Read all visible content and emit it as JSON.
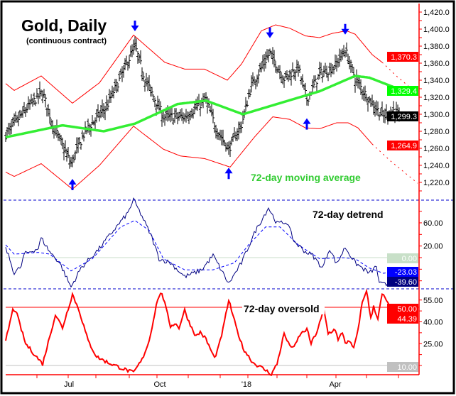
{
  "chart_data": [
    {
      "type": "line",
      "panel": "price",
      "title": "Gold, Daily",
      "subtitle": "(continuous contract)",
      "annotation": "72-day moving average",
      "x_unit": "trading day index",
      "ylim": [
        1200,
        1430
      ],
      "yticks": [
        "1,220.0",
        "1,240.0",
        "1,260.0",
        "1,280.0",
        "1,300.0",
        "1,320.0",
        "1,340.0",
        "1,360.0",
        "1,380.0",
        "1,400.0",
        "1,420.0"
      ],
      "ytick_values": [
        1220,
        1240,
        1260,
        1280,
        1300,
        1320,
        1340,
        1360,
        1380,
        1400,
        1420
      ],
      "close_keypoints": [
        [
          0,
          1276
        ],
        [
          16,
          1309
        ],
        [
          26,
          1326
        ],
        [
          33,
          1288
        ],
        [
          46,
          1242
        ],
        [
          56,
          1280
        ],
        [
          71,
          1309
        ],
        [
          83,
          1351
        ],
        [
          91,
          1380
        ],
        [
          98,
          1342
        ],
        [
          111,
          1297
        ],
        [
          126,
          1297
        ],
        [
          141,
          1317
        ],
        [
          148,
          1284
        ],
        [
          157,
          1259
        ],
        [
          166,
          1288
        ],
        [
          173,
          1334
        ],
        [
          186,
          1372
        ],
        [
          196,
          1342
        ],
        [
          206,
          1355
        ],
        [
          212,
          1317
        ],
        [
          221,
          1347
        ],
        [
          231,
          1355
        ],
        [
          239,
          1376
        ],
        [
          246,
          1342
        ],
        [
          256,
          1317
        ],
        [
          266,
          1297
        ],
        [
          273,
          1305
        ],
        [
          277,
          1299.3
        ]
      ],
      "moving_average": [
        [
          0,
          1273
        ],
        [
          40,
          1287
        ],
        [
          69,
          1280
        ],
        [
          91,
          1289
        ],
        [
          121,
          1312
        ],
        [
          141,
          1316
        ],
        [
          167,
          1300
        ],
        [
          197,
          1315
        ],
        [
          221,
          1327
        ],
        [
          246,
          1345
        ],
        [
          256,
          1343
        ],
        [
          277,
          1329.4
        ]
      ],
      "upper_band": [
        [
          0,
          1336
        ],
        [
          6,
          1328
        ],
        [
          25,
          1345
        ],
        [
          47,
          1313
        ],
        [
          66,
          1337
        ],
        [
          90,
          1393
        ],
        [
          112,
          1361
        ],
        [
          126,
          1353
        ],
        [
          140,
          1353
        ],
        [
          156,
          1340
        ],
        [
          166,
          1359
        ],
        [
          180,
          1398
        ],
        [
          190,
          1405
        ],
        [
          200,
          1401
        ],
        [
          211,
          1392
        ],
        [
          221,
          1390
        ],
        [
          230,
          1395
        ],
        [
          240,
          1398
        ],
        [
          246,
          1394
        ],
        [
          258,
          1370
        ],
        [
          265,
          1361
        ]
      ],
      "upper_band_projection": [
        [
          265,
          1361
        ],
        [
          275,
          1345
        ],
        [
          290,
          1324
        ]
      ],
      "lower_band": [
        [
          0,
          1232
        ],
        [
          6,
          1227
        ],
        [
          25,
          1242
        ],
        [
          47,
          1212
        ],
        [
          66,
          1240
        ],
        [
          90,
          1286
        ],
        [
          111,
          1259
        ],
        [
          123,
          1251
        ],
        [
          140,
          1248
        ],
        [
          158,
          1238
        ],
        [
          175,
          1273
        ],
        [
          188,
          1297
        ],
        [
          200,
          1294
        ],
        [
          211,
          1284
        ],
        [
          221,
          1283
        ],
        [
          233,
          1290
        ],
        [
          241,
          1290
        ],
        [
          248,
          1284
        ],
        [
          258,
          1265
        ]
      ],
      "lower_band_projection": [
        [
          258,
          1265
        ],
        [
          271,
          1245
        ],
        [
          290,
          1219
        ]
      ],
      "down_arrows": [
        91,
        186,
        239
      ],
      "up_arrows": [
        47,
        157,
        212
      ],
      "value_tags": [
        {
          "label": "1,370.3",
          "value": 1370.3,
          "color": "#ff0000"
        },
        {
          "label": "1,329.4",
          "value": 1329.4,
          "color": "#00ff00"
        },
        {
          "label": "1,299.3",
          "value": 1299.3,
          "color": "#000000"
        },
        {
          "label": "1,264.9",
          "value": 1264.9,
          "color": "#ff0000"
        }
      ]
    },
    {
      "type": "line",
      "panel": "detrend",
      "annotation": "72-day detrend",
      "ylim": [
        -54,
        100
      ],
      "yticks": [
        "60.00",
        "20.00"
      ],
      "ytick_values": [
        60,
        20
      ],
      "zero_line": 0,
      "series": [
        {
          "name": "detrend",
          "values": [
            [
              0,
              18
            ],
            [
              6,
              -27
            ],
            [
              11,
              -15
            ],
            [
              13,
              6
            ],
            [
              23,
              16
            ],
            [
              25,
              34
            ],
            [
              31,
              10
            ],
            [
              38,
              -9
            ],
            [
              46,
              -51
            ],
            [
              53,
              -18
            ],
            [
              66,
              16
            ],
            [
              73,
              38
            ],
            [
              86,
              77
            ],
            [
              90,
              100
            ],
            [
              96,
              71
            ],
            [
              103,
              34
            ],
            [
              108,
              -2
            ],
            [
              116,
              -9
            ],
            [
              126,
              -33
            ],
            [
              138,
              -21
            ],
            [
              146,
              4
            ],
            [
              153,
              -27
            ],
            [
              157,
              -45
            ],
            [
              166,
              -9
            ],
            [
              176,
              47
            ],
            [
              185,
              86
            ],
            [
              191,
              59
            ],
            [
              198,
              61
            ],
            [
              203,
              28
            ],
            [
              211,
              10
            ],
            [
              216,
              4
            ],
            [
              223,
              -18
            ],
            [
              228,
              16
            ],
            [
              233,
              -11
            ],
            [
              239,
              18
            ],
            [
              246,
              -9
            ],
            [
              256,
              -27
            ],
            [
              261,
              -15
            ],
            [
              263,
              -45
            ],
            [
              268,
              -47
            ],
            [
              272,
              -33
            ],
            [
              277,
              -39.6
            ]
          ]
        },
        {
          "name": "signal",
          "values": [
            [
              0,
              22
            ],
            [
              6,
              6
            ],
            [
              23,
              9
            ],
            [
              31,
              6
            ],
            [
              46,
              -23
            ],
            [
              61,
              -2
            ],
            [
              81,
              53
            ],
            [
              91,
              64
            ],
            [
              101,
              47
            ],
            [
              111,
              -2
            ],
            [
              126,
              -21
            ],
            [
              146,
              -21
            ],
            [
              161,
              -9
            ],
            [
              171,
              22
            ],
            [
              183,
              53
            ],
            [
              193,
              53
            ],
            [
              206,
              22
            ],
            [
              221,
              -2
            ],
            [
              236,
              0
            ],
            [
              246,
              -2
            ],
            [
              256,
              -18
            ],
            [
              266,
              -27
            ],
            [
              277,
              -23.03
            ]
          ]
        }
      ],
      "value_tags": [
        {
          "label": "0.00",
          "value": 0,
          "color": "#c8e0c8"
        },
        {
          "label": "-23.03",
          "value": -23.03,
          "color": "#0000ff"
        },
        {
          "label": "-39.60",
          "value": -39.6,
          "color": "#000080"
        }
      ]
    },
    {
      "type": "line",
      "panel": "oversold",
      "annotation": "72-day oversold",
      "ylim": [
        3.5,
        62.7
      ],
      "yticks": [
        "55.00",
        "40.00",
        "25.00"
      ],
      "ytick_values": [
        55,
        40,
        25
      ],
      "reference_lines": [
        50,
        10
      ],
      "values": [
        [
          0,
          27
        ],
        [
          5,
          48
        ],
        [
          7,
          48
        ],
        [
          14,
          25
        ],
        [
          26,
          11
        ],
        [
          35,
          45
        ],
        [
          40,
          36
        ],
        [
          47,
          59
        ],
        [
          52,
          47
        ],
        [
          58,
          27
        ],
        [
          64,
          16
        ],
        [
          72,
          12
        ],
        [
          82,
          8
        ],
        [
          90,
          5
        ],
        [
          96,
          14
        ],
        [
          101,
          27
        ],
        [
          107,
          56
        ],
        [
          110,
          60
        ],
        [
          116,
          37
        ],
        [
          119,
          39
        ],
        [
          122,
          36
        ],
        [
          126,
          48
        ],
        [
          129,
          40
        ],
        [
          134,
          30
        ],
        [
          137,
          33
        ],
        [
          141,
          28
        ],
        [
          147,
          15
        ],
        [
          150,
          23
        ],
        [
          153,
          35
        ],
        [
          157,
          55
        ],
        [
          162,
          37
        ],
        [
          167,
          22
        ],
        [
          174,
          12
        ],
        [
          181,
          8
        ],
        [
          187,
          4
        ],
        [
          191,
          11
        ],
        [
          196,
          32
        ],
        [
          199,
          25
        ],
        [
          203,
          22
        ],
        [
          207,
          31
        ],
        [
          212,
          35
        ],
        [
          215,
          25
        ],
        [
          219,
          33
        ],
        [
          224,
          48
        ],
        [
          227,
          32
        ],
        [
          232,
          35
        ],
        [
          234,
          27
        ],
        [
          237,
          33
        ],
        [
          239,
          26
        ],
        [
          242,
          26
        ],
        [
          245,
          22
        ],
        [
          247,
          29
        ],
        [
          251,
          53
        ],
        [
          254,
          62
        ],
        [
          257,
          42
        ],
        [
          259,
          51
        ],
        [
          262,
          42
        ],
        [
          265,
          59
        ],
        [
          268,
          55
        ],
        [
          272,
          46
        ],
        [
          273,
          49
        ],
        [
          275,
          41
        ],
        [
          277,
          44.39
        ]
      ],
      "value_tags": [
        {
          "label": "50.00",
          "value": 50,
          "color": "#ff0000"
        },
        {
          "label": "44.39",
          "value": 44.39,
          "color": "#ff0000"
        },
        {
          "label": "10.00",
          "value": 10,
          "color": "#c0c0c0"
        }
      ]
    }
  ],
  "x_axis": {
    "labels": [
      {
        "label": "Jul",
        "day": 44.5
      },
      {
        "label": "Oct",
        "day": 108.5
      },
      {
        "label": "'18",
        "day": 169.5
      },
      {
        "label": "Apr",
        "day": 232
      }
    ],
    "month_ticks": [
      22,
      44,
      63.5,
      87,
      106.5,
      128.5,
      151,
      170.5,
      191,
      212,
      232.5,
      254,
      276.5
    ]
  },
  "colors": {
    "bars": "#000000",
    "ma": "#33ee33",
    "bands": "#ff0000",
    "detrend": "#000080",
    "signal": "#0000ff",
    "oversold": "#ff0000",
    "arrows": "#0000ff",
    "axis": "#ff0000"
  }
}
